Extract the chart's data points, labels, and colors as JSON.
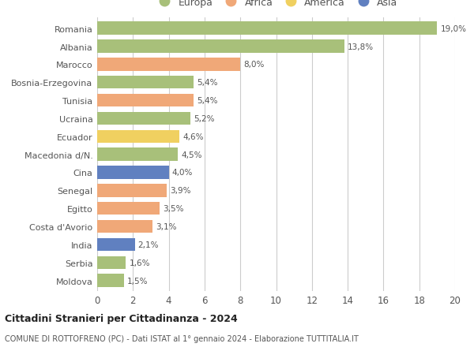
{
  "countries": [
    "Romania",
    "Albania",
    "Marocco",
    "Bosnia-Erzegovina",
    "Tunisia",
    "Ucraina",
    "Ecuador",
    "Macedonia d/N.",
    "Cina",
    "Senegal",
    "Egitto",
    "Costa d'Avorio",
    "India",
    "Serbia",
    "Moldova"
  ],
  "values": [
    19.0,
    13.8,
    8.0,
    5.4,
    5.4,
    5.2,
    4.6,
    4.5,
    4.0,
    3.9,
    3.5,
    3.1,
    2.1,
    1.6,
    1.5
  ],
  "labels": [
    "19,0%",
    "13,8%",
    "8,0%",
    "5,4%",
    "5,4%",
    "5,2%",
    "4,6%",
    "4,5%",
    "4,0%",
    "3,9%",
    "3,5%",
    "3,1%",
    "2,1%",
    "1,6%",
    "1,5%"
  ],
  "colors": [
    "#a8c07a",
    "#a8c07a",
    "#f0a878",
    "#a8c07a",
    "#f0a878",
    "#a8c07a",
    "#f0d060",
    "#a8c07a",
    "#6080c0",
    "#f0a878",
    "#f0a878",
    "#f0a878",
    "#6080c0",
    "#a8c07a",
    "#a8c07a"
  ],
  "legend": {
    "Europa": "#a8c07a",
    "Africa": "#f0a878",
    "America": "#f0d060",
    "Asia": "#6080c0"
  },
  "xlim": [
    0,
    20
  ],
  "xticks": [
    0,
    2,
    4,
    6,
    8,
    10,
    12,
    14,
    16,
    18,
    20
  ],
  "title": "Cittadini Stranieri per Cittadinanza - 2024",
  "subtitle": "COMUNE DI ROTTOFRENO (PC) - Dati ISTAT al 1° gennaio 2024 - Elaborazione TUTTITALIA.IT",
  "background_color": "#ffffff",
  "grid_color": "#cccccc"
}
